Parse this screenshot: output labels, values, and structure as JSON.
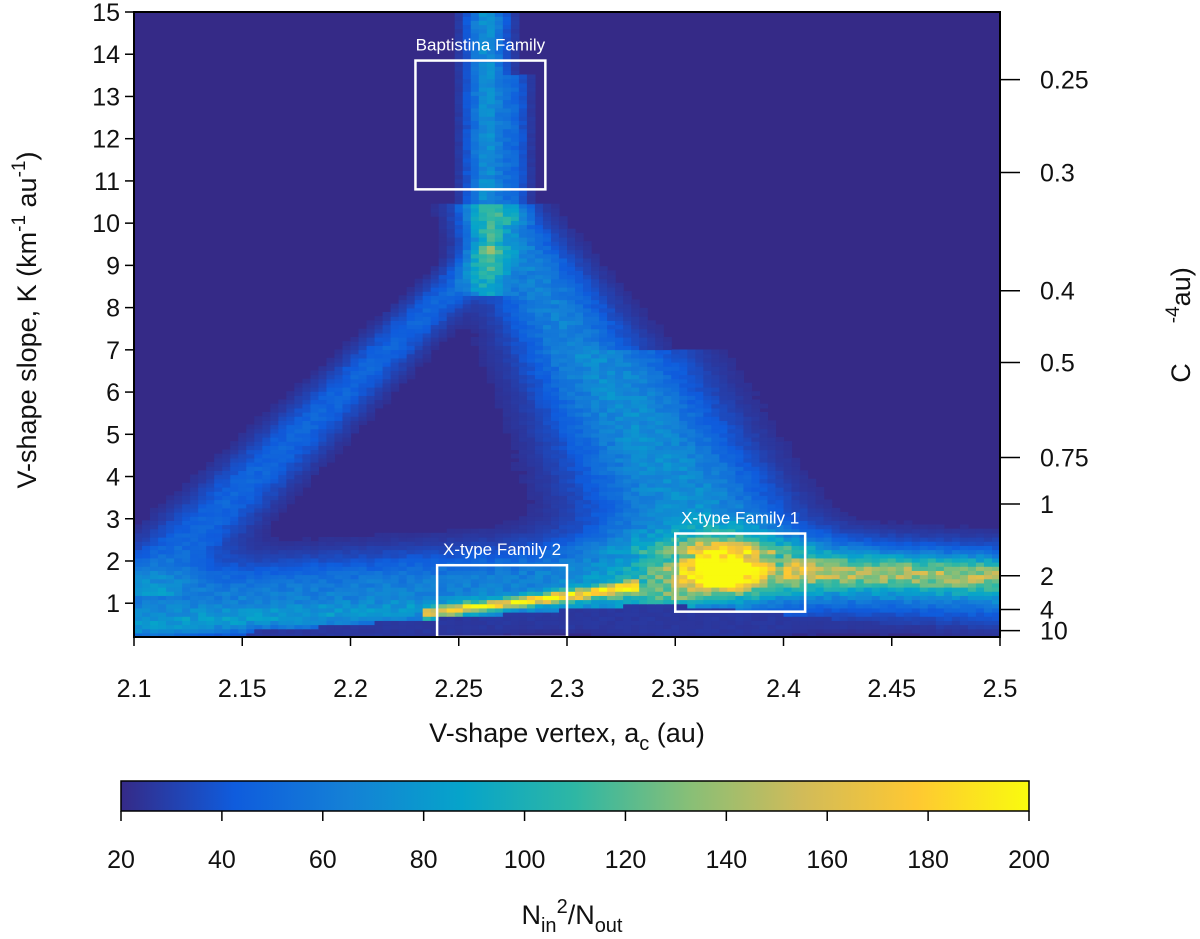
{
  "chart_data": {
    "type": "heatmap",
    "xlabel": {
      "main": "V-shape vertex, a",
      "sub": "c",
      "unit": " (au)"
    },
    "ylabel": {
      "main": "V-shape slope, K (km",
      "sup1": "-1",
      "mid": " au",
      "sup2": "-1",
      "end": ")"
    },
    "ylabel_right": {
      "main": "C",
      "sup": "-4",
      "unit": "au)"
    },
    "xlim": [
      2.1,
      2.5
    ],
    "ylim": [
      0.2,
      15
    ],
    "xticks": [
      2.1,
      2.15,
      2.2,
      2.25,
      2.3,
      2.35,
      2.4,
      2.45,
      2.5
    ],
    "xtick_labels": [
      "2.1",
      "2.15",
      "2.2",
      "2.25",
      "2.3",
      "2.35",
      "2.4",
      "2.45",
      "2.5"
    ],
    "yticks": [
      1,
      2,
      3,
      4,
      5,
      6,
      7,
      8,
      9,
      10,
      11,
      12,
      13,
      14,
      15
    ],
    "ytick_labels": [
      "1",
      "2",
      "3",
      "4",
      "5",
      "6",
      "7",
      "8",
      "9",
      "10",
      "11",
      "12",
      "13",
      "14",
      "15"
    ],
    "right_ticks": [
      {
        "label": "0.25",
        "k": 13.4
      },
      {
        "label": "0.3",
        "k": 11.2
      },
      {
        "label": "0.4",
        "k": 8.4
      },
      {
        "label": "0.5",
        "k": 6.7
      },
      {
        "label": "0.75",
        "k": 4.45
      },
      {
        "label": "1",
        "k": 3.35
      },
      {
        "label": "2",
        "k": 1.65
      },
      {
        "label": "4",
        "k": 0.85
      },
      {
        "label": "10",
        "k": 0.35
      }
    ],
    "colorbar": {
      "min": 20,
      "max": 200,
      "ticks": [
        20,
        40,
        60,
        80,
        100,
        120,
        140,
        160,
        180,
        200
      ],
      "tick_labels": [
        "20",
        "40",
        "60",
        "80",
        "100",
        "120",
        "140",
        "160",
        "180",
        "200"
      ],
      "label": {
        "n1": "N",
        "sub1": "in",
        "sup": "2",
        "slash": "/N",
        "sub2": "out"
      },
      "colors": [
        "#352a87",
        "#0f5cdd",
        "#1481d6",
        "#06a4ca",
        "#2eb7a4",
        "#87bf77",
        "#d1bb59",
        "#fec832",
        "#f9fb0e"
      ]
    },
    "background_value": 20,
    "annotations": [
      {
        "label": "Baptistina Family",
        "x0": 2.23,
        "x1": 2.29,
        "y0": 10.8,
        "y1": 13.85
      },
      {
        "label": "X-type Family 2",
        "x0": 2.24,
        "x1": 2.3,
        "y0": 0.2,
        "y1": 1.9
      },
      {
        "label": "X-type Family 1",
        "x0": 2.35,
        "x1": 2.41,
        "y0": 0.8,
        "y1": 2.65
      }
    ],
    "features": [
      {
        "name": "vertical stalk",
        "x": 2.263,
        "y_from": 8.5,
        "y_to": 15,
        "peak": 72
      },
      {
        "name": "left arm",
        "from": [
          2.1,
          1.35
        ],
        "to": [
          2.27,
          9.5
        ],
        "peak": 60
      },
      {
        "name": "central ridge",
        "from": [
          2.27,
          9.5
        ],
        "to": [
          2.36,
          3.0
        ],
        "peak": 70
      },
      {
        "name": "lower band",
        "from": [
          2.1,
          0.7
        ],
        "to": [
          2.5,
          1.5
        ],
        "peak": 120
      },
      {
        "name": "Family 2 streak",
        "from": [
          2.24,
          0.75
        ],
        "to": [
          2.33,
          1.45
        ],
        "peak": 150
      },
      {
        "name": "Family 1 core",
        "x": 2.375,
        "y": 1.8,
        "peak": 195
      }
    ]
  }
}
